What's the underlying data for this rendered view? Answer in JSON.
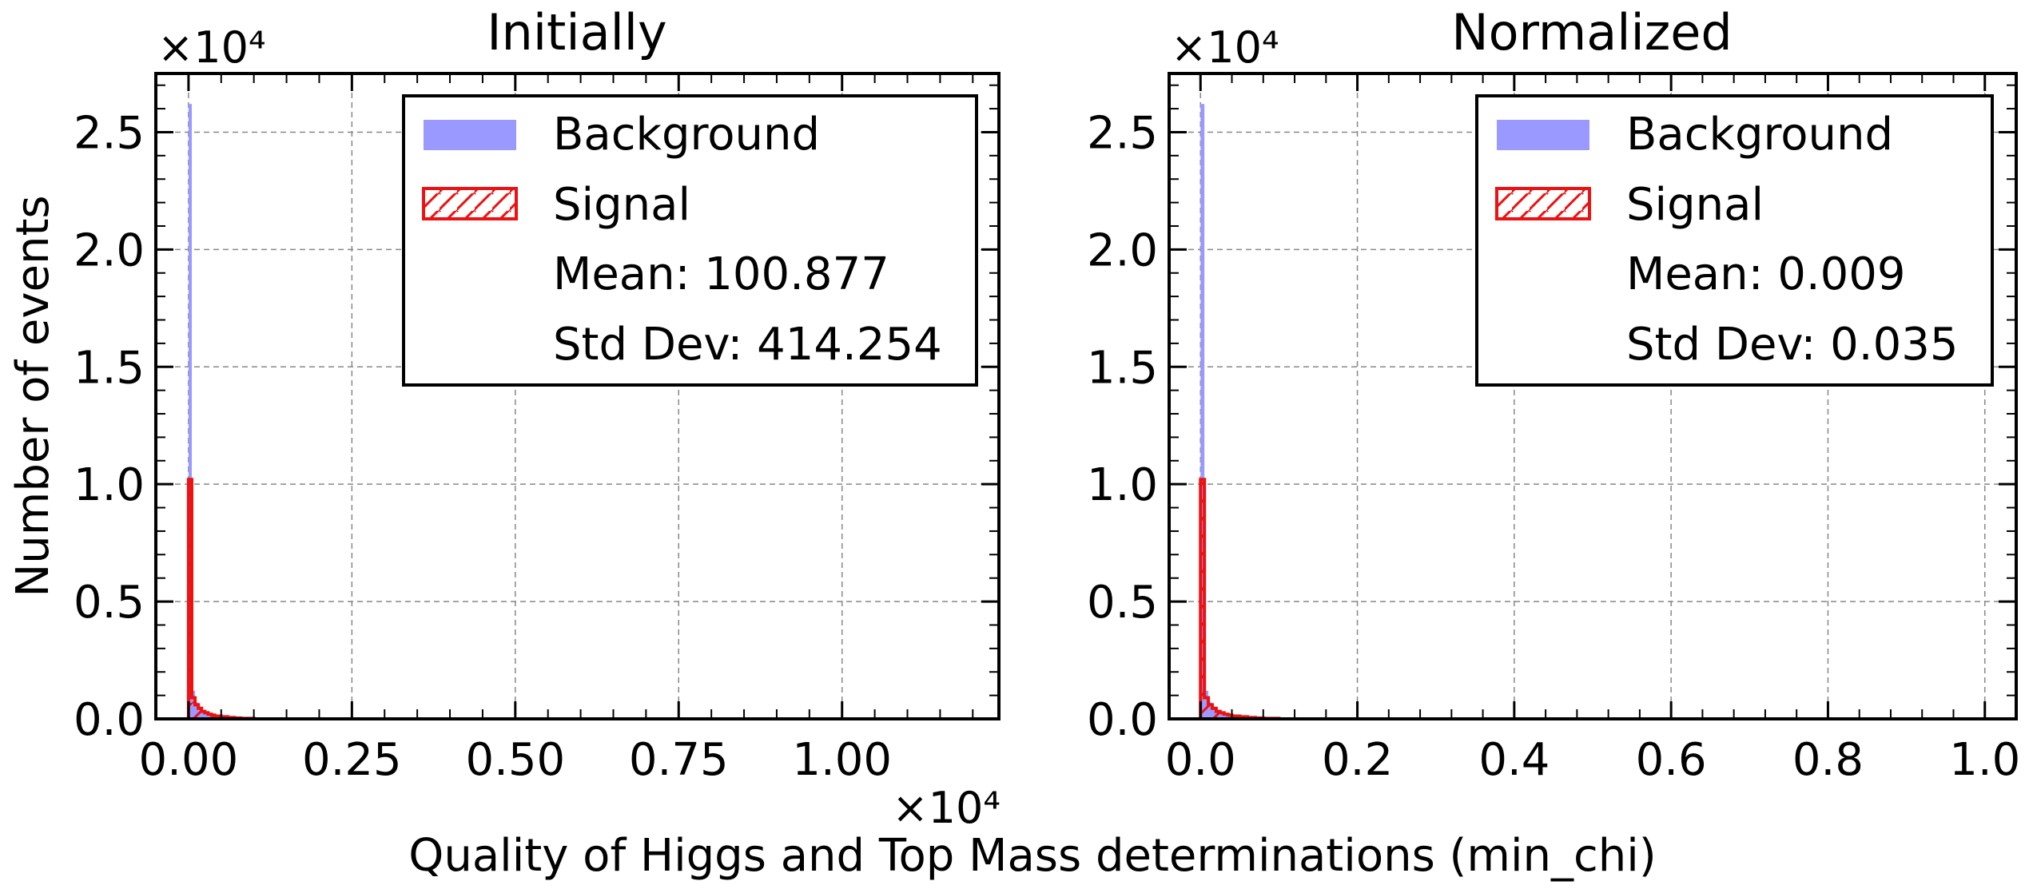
{
  "figure": {
    "xlabel": "Quality of Higgs and Top Mass determinations (min_chi)",
    "ylabel": "Number of events"
  },
  "chart_data": [
    {
      "type": "bar",
      "title": "Initially",
      "x_offset_label": "×10⁴",
      "y_offset_label": "×10⁴",
      "xlim": [
        -0.05,
        1.24
      ],
      "ylim": [
        0,
        2.75
      ],
      "xticks": [
        0.0,
        0.25,
        0.5,
        0.75,
        1.0
      ],
      "xtick_labels": [
        "0.00",
        "0.25",
        "0.50",
        "0.75",
        "1.00"
      ],
      "yticks": [
        0.0,
        0.5,
        1.0,
        1.5,
        2.0,
        2.5
      ],
      "ytick_labels": [
        "0.0",
        "0.5",
        "1.0",
        "1.5",
        "2.0",
        "2.5"
      ],
      "grid": true,
      "legend_position": "top-right",
      "legend": [
        {
          "label": "Background",
          "kind": "filled",
          "color": "#9999ff"
        },
        {
          "label": "Signal",
          "kind": "hatched",
          "color": "#ee1111"
        },
        {
          "label": "Mean: 100.877",
          "kind": "text"
        },
        {
          "label": "Std Dev: 414.254",
          "kind": "text"
        }
      ],
      "bin_edges": [
        0.0,
        0.005,
        0.01,
        0.015,
        0.02,
        0.025,
        0.03,
        0.035,
        0.04,
        0.05,
        0.06,
        0.07,
        0.08,
        0.1
      ],
      "series": [
        {
          "name": "Background",
          "values": [
            2.62,
            0.12,
            0.07,
            0.05,
            0.035,
            0.028,
            0.022,
            0.018,
            0.014,
            0.01,
            0.007,
            0.005,
            0.003
          ]
        },
        {
          "name": "Signal",
          "values": [
            1.02,
            0.09,
            0.06,
            0.045,
            0.032,
            0.026,
            0.02,
            0.016,
            0.012,
            0.009,
            0.006,
            0.004,
            0.002
          ]
        }
      ]
    },
    {
      "type": "bar",
      "title": "Normalized",
      "y_offset_label": "×10⁴",
      "xlim": [
        -0.04,
        1.04
      ],
      "ylim": [
        0,
        2.75
      ],
      "xticks": [
        0.0,
        0.2,
        0.4,
        0.6,
        0.8,
        1.0
      ],
      "xtick_labels": [
        "0.0",
        "0.2",
        "0.4",
        "0.6",
        "0.8",
        "1.0"
      ],
      "yticks": [
        0.0,
        0.5,
        1.0,
        1.5,
        2.0,
        2.5
      ],
      "ytick_labels": [
        "0.0",
        "0.5",
        "1.0",
        "1.5",
        "2.0",
        "2.5"
      ],
      "grid": true,
      "legend_position": "top-right",
      "legend": [
        {
          "label": "Background",
          "kind": "filled",
          "color": "#9999ff"
        },
        {
          "label": "Signal",
          "kind": "hatched",
          "color": "#ee1111"
        },
        {
          "label": "Mean: 0.009",
          "kind": "text"
        },
        {
          "label": "Std Dev: 0.035",
          "kind": "text"
        }
      ],
      "bin_edges": [
        0.0,
        0.005,
        0.01,
        0.015,
        0.02,
        0.025,
        0.03,
        0.035,
        0.04,
        0.05,
        0.06,
        0.07,
        0.08,
        0.1
      ],
      "series": [
        {
          "name": "Background",
          "values": [
            2.62,
            0.12,
            0.07,
            0.05,
            0.035,
            0.028,
            0.022,
            0.018,
            0.014,
            0.01,
            0.007,
            0.005,
            0.003
          ]
        },
        {
          "name": "Signal",
          "values": [
            1.02,
            0.09,
            0.06,
            0.045,
            0.032,
            0.026,
            0.02,
            0.016,
            0.012,
            0.009,
            0.006,
            0.004,
            0.002
          ]
        }
      ]
    }
  ]
}
